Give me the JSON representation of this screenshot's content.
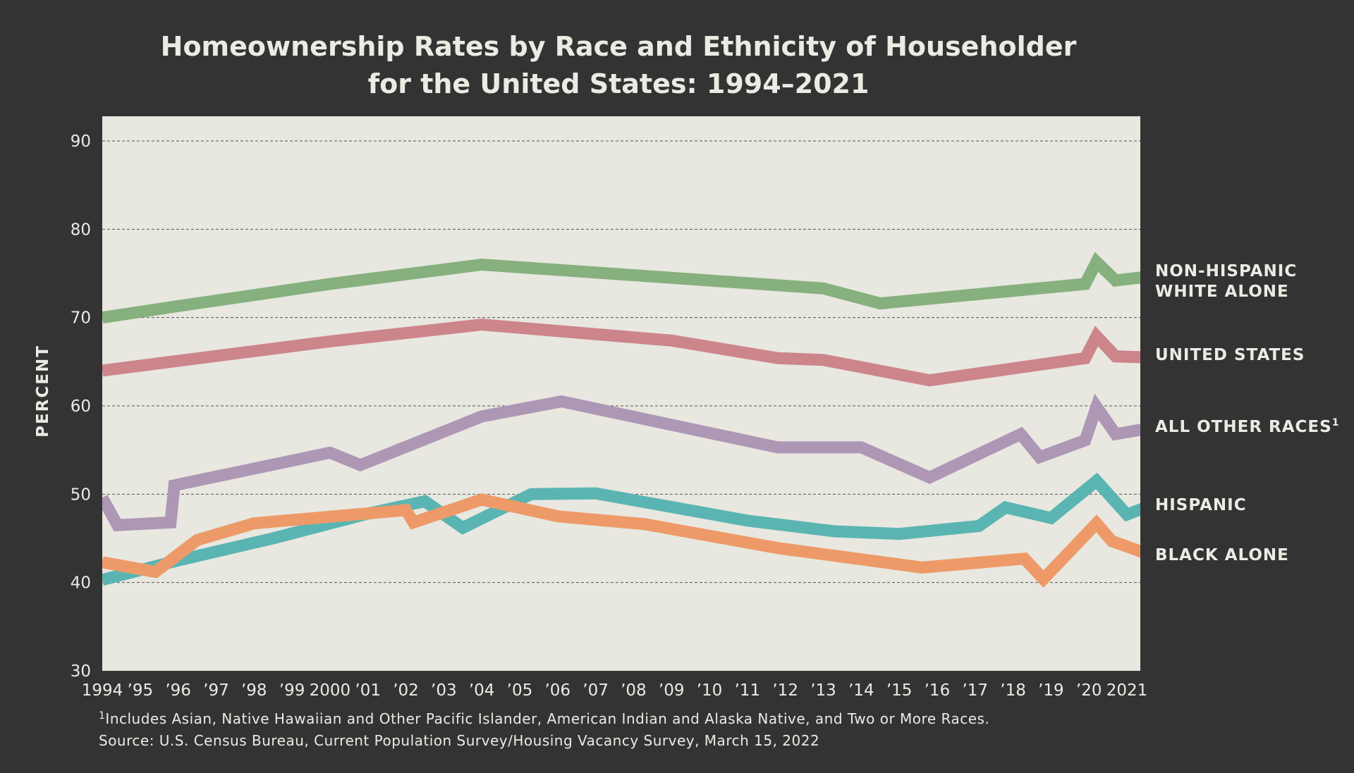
{
  "colors": {
    "background": "#333333",
    "plot_area": "#e8e7e0",
    "text": "#ebebe4",
    "grid": "#555555"
  },
  "chart_data": {
    "type": "line",
    "title": [
      "Homeownership Rates by Race and Ethnicity of Householder",
      "for the United States: 1994–2021"
    ],
    "ylabel": "PERCENT",
    "xlabel": "",
    "ylim": [
      30,
      90
    ],
    "yticks": [
      30,
      40,
      50,
      60,
      70,
      80,
      90
    ],
    "xlim": [
      1994,
      2021.5
    ],
    "xticks": [
      {
        "x": 1994,
        "label": "1994"
      },
      {
        "x": 1995,
        "label": "’95"
      },
      {
        "x": 1996,
        "label": "’96"
      },
      {
        "x": 1997,
        "label": "’97"
      },
      {
        "x": 1998,
        "label": "’98"
      },
      {
        "x": 1999,
        "label": "’99"
      },
      {
        "x": 2000,
        "label": "2000"
      },
      {
        "x": 2001,
        "label": "’01"
      },
      {
        "x": 2002,
        "label": "’02"
      },
      {
        "x": 2003,
        "label": "’03"
      },
      {
        "x": 2004,
        "label": "’04"
      },
      {
        "x": 2005,
        "label": "’05"
      },
      {
        "x": 2006,
        "label": "’06"
      },
      {
        "x": 2007,
        "label": "’07"
      },
      {
        "x": 2008,
        "label": "’08"
      },
      {
        "x": 2009,
        "label": "’09"
      },
      {
        "x": 2010,
        "label": "’10"
      },
      {
        "x": 2011,
        "label": "’11"
      },
      {
        "x": 2012,
        "label": "’12"
      },
      {
        "x": 2013,
        "label": "’13"
      },
      {
        "x": 2014,
        "label": "’14"
      },
      {
        "x": 2015,
        "label": "’15"
      },
      {
        "x": 2016,
        "label": "’16"
      },
      {
        "x": 2017,
        "label": "’17"
      },
      {
        "x": 2018,
        "label": "’18"
      },
      {
        "x": 2019,
        "label": "’19"
      },
      {
        "x": 2020,
        "label": "’20"
      },
      {
        "x": 2021,
        "label": "2021"
      }
    ],
    "grid": true,
    "series": [
      {
        "name": [
          "NON-HISPANIC",
          "WHITE ALONE"
        ],
        "color": "#86b07e",
        "points": [
          [
            1994,
            70.0
          ],
          [
            1996,
            71.3
          ],
          [
            2000,
            73.8
          ],
          [
            2004,
            76.0
          ],
          [
            2013,
            73.3
          ],
          [
            2014.5,
            71.6
          ],
          [
            2019.9,
            73.8
          ],
          [
            2020.2,
            76.3
          ],
          [
            2020.7,
            74.2
          ],
          [
            2021.5,
            74.6
          ]
        ]
      },
      {
        "name": [
          "UNITED STATES"
        ],
        "color": "#cc858b",
        "points": [
          [
            1994,
            64.0
          ],
          [
            2000,
            67.3
          ],
          [
            2004,
            69.2
          ],
          [
            2009,
            67.4
          ],
          [
            2011.8,
            65.4
          ],
          [
            2013,
            65.2
          ],
          [
            2015.8,
            62.9
          ],
          [
            2019.9,
            65.4
          ],
          [
            2020.2,
            67.9
          ],
          [
            2020.7,
            65.6
          ],
          [
            2021.5,
            65.5
          ]
        ]
      },
      {
        "name": [
          "ALL OTHER RACES",
          "1"
        ],
        "color": "#ad97b5",
        "points": [
          [
            1994,
            49.6
          ],
          [
            1994.4,
            46.5
          ],
          [
            1995.8,
            46.8
          ],
          [
            1995.9,
            51.0
          ],
          [
            2000,
            54.7
          ],
          [
            2000.8,
            53.3
          ],
          [
            2004,
            58.8
          ],
          [
            2006.1,
            60.5
          ],
          [
            2011.8,
            55.3
          ],
          [
            2014,
            55.3
          ],
          [
            2015.8,
            51.9
          ],
          [
            2018.2,
            56.8
          ],
          [
            2018.7,
            54.2
          ],
          [
            2019.9,
            56.1
          ],
          [
            2020.2,
            59.9
          ],
          [
            2020.7,
            56.8
          ],
          [
            2021.5,
            57.4
          ]
        ]
      },
      {
        "name": [
          "HISPANIC"
        ],
        "color": "#5ab5b2",
        "points": [
          [
            1994,
            40.3
          ],
          [
            1996,
            42.5
          ],
          [
            1998.5,
            45.0
          ],
          [
            2001,
            47.8
          ],
          [
            2002.5,
            49.2
          ],
          [
            2003.5,
            46.2
          ],
          [
            2005.3,
            50.0
          ],
          [
            2007,
            50.1
          ],
          [
            2011,
            47.0
          ],
          [
            2013.3,
            45.8
          ],
          [
            2015,
            45.5
          ],
          [
            2017.1,
            46.4
          ],
          [
            2017.8,
            48.5
          ],
          [
            2019,
            47.3
          ],
          [
            2020.2,
            51.5
          ],
          [
            2021,
            47.7
          ],
          [
            2021.5,
            48.5
          ]
        ]
      },
      {
        "name": [
          "BLACK ALONE"
        ],
        "color": "#ee9a68",
        "points": [
          [
            1994,
            42.3
          ],
          [
            1995.4,
            41.2
          ],
          [
            1996.5,
            44.8
          ],
          [
            1998,
            46.7
          ],
          [
            2002,
            48.2
          ],
          [
            2002.2,
            46.8
          ],
          [
            2004,
            49.4
          ],
          [
            2006,
            47.5
          ],
          [
            2008.3,
            46.6
          ],
          [
            2011.8,
            43.9
          ],
          [
            2015.6,
            41.7
          ],
          [
            2018.3,
            42.7
          ],
          [
            2018.8,
            40.4
          ],
          [
            2020.2,
            46.7
          ],
          [
            2020.6,
            44.7
          ],
          [
            2021.5,
            43.3
          ]
        ]
      }
    ]
  },
  "footnotes": {
    "note_mark": "1",
    "note": "Includes Asian, Native Hawaiian and Other Pacific Islander, American Indian and Alaska Native, and Two or More Races.",
    "source": "Source: U.S. Census Bureau, Current Population Survey/Housing Vacancy Survey, March 15, 2022"
  }
}
